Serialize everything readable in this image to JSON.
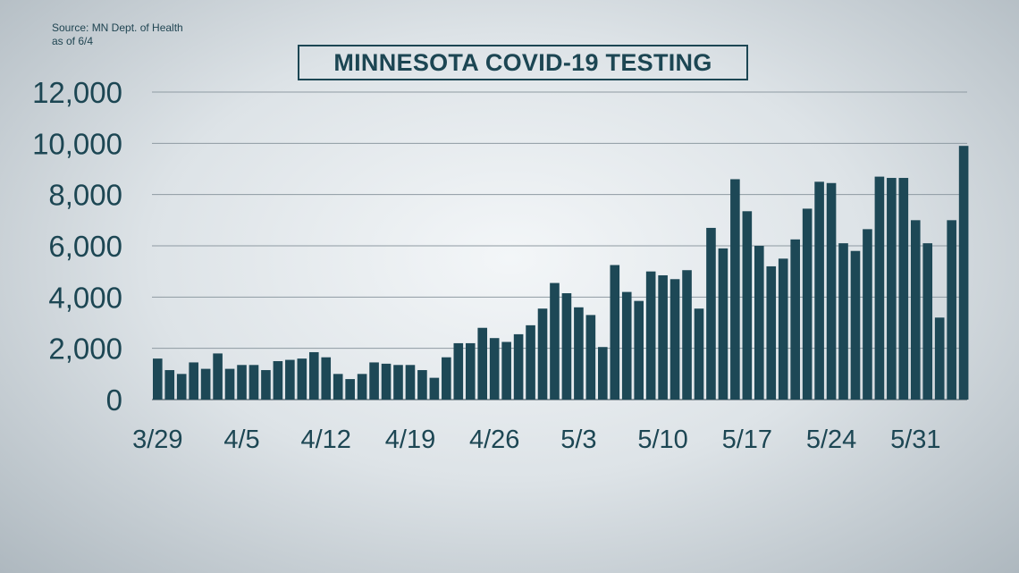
{
  "source": {
    "line1": "Source: MN Dept. of Health",
    "line2": "as of 6/4"
  },
  "colors": {
    "bar": "#1d4856",
    "text": "#1c4653",
    "grid": "#8e9aa2"
  },
  "chart_data": {
    "type": "bar",
    "title": "MINNESOTA COVID-19 TESTING",
    "xlabel": "",
    "ylabel": "",
    "ylim": [
      0,
      12000
    ],
    "yticks": [
      0,
      2000,
      4000,
      6000,
      8000,
      10000,
      12000
    ],
    "ytick_labels": [
      "0",
      "2,000",
      "4,000",
      "6,000",
      "8,000",
      "10,000",
      "12,000"
    ],
    "grid": true,
    "start_date": "3/29",
    "xtick_labels": [
      "3/29",
      "4/5",
      "4/12",
      "4/19",
      "4/26",
      "5/3",
      "5/10",
      "5/17",
      "5/24",
      "5/31"
    ],
    "values": [
      1600,
      1150,
      1000,
      1450,
      1200,
      1800,
      1200,
      1350,
      1350,
      1150,
      1500,
      1550,
      1600,
      1850,
      1650,
      1000,
      800,
      1000,
      1450,
      1400,
      1350,
      1350,
      1150,
      850,
      1650,
      2200,
      2200,
      2800,
      2400,
      2250,
      2550,
      2900,
      3550,
      4550,
      4150,
      3600,
      3300,
      2050,
      5250,
      4200,
      3850,
      5000,
      4850,
      4700,
      5050,
      3550,
      6700,
      5900,
      8600,
      7350,
      6000,
      5200,
      5500,
      6250,
      7450,
      8500,
      8450,
      6100,
      5800,
      6650,
      8700,
      8650,
      8650,
      7000,
      6100,
      3200,
      7000,
      9900
    ]
  }
}
